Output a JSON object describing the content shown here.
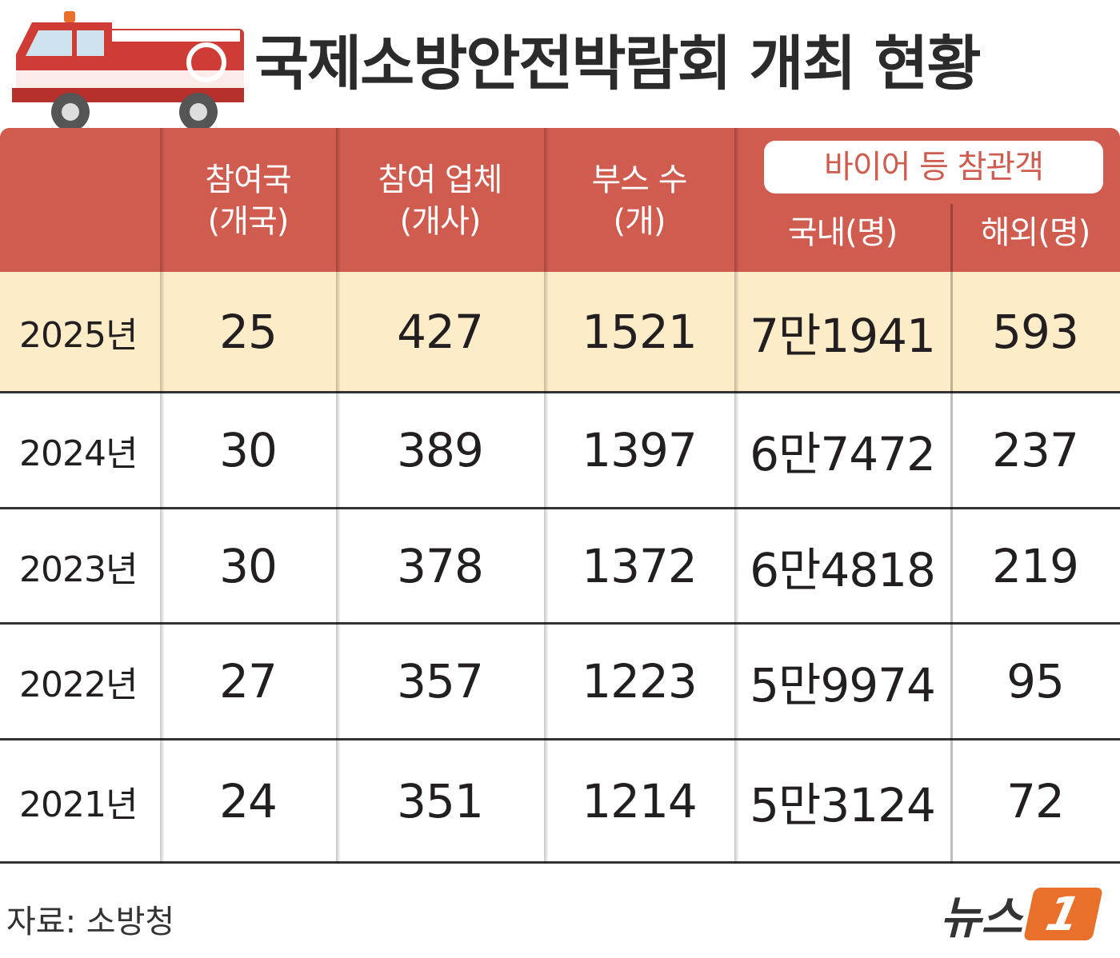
{
  "header": {
    "title": "국제소방안전박람회 개최 현황"
  },
  "table": {
    "columns": [
      {
        "label": "참여국",
        "unit": "(개국)"
      },
      {
        "label": "참여 업체",
        "unit": "(개사)"
      },
      {
        "label": "부스 수",
        "unit": "(개)"
      }
    ],
    "group": {
      "label": "바이어 등 참관객",
      "columns": [
        "국내(명)",
        "해외(명)"
      ]
    },
    "rows": [
      [
        "2025년",
        "25",
        "427",
        "1521",
        "7만1941",
        "593"
      ],
      [
        "2024년",
        "30",
        "389",
        "1397",
        "6만7472",
        "237"
      ],
      [
        "2023년",
        "30",
        "378",
        "1372",
        "6만4818",
        "219"
      ],
      [
        "2022년",
        "27",
        "357",
        "1223",
        "5만9974",
        "95"
      ],
      [
        "2021년",
        "24",
        "351",
        "1214",
        "5만3124",
        "72"
      ]
    ]
  },
  "footer": {
    "source": "자료: 소방청",
    "logo": {
      "text": "뉴스",
      "badge": "1"
    }
  }
}
